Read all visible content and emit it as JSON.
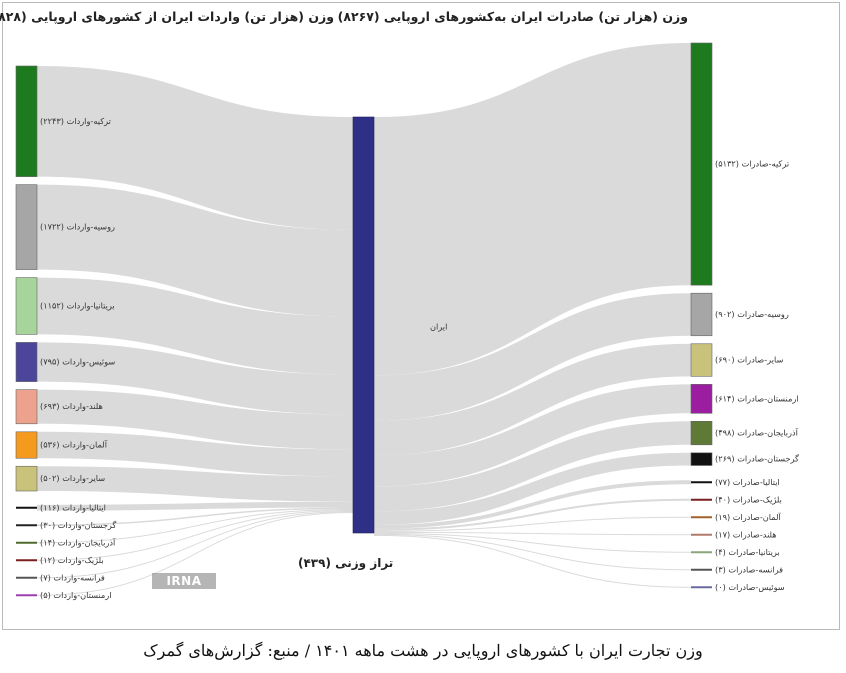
{
  "titles": {
    "left": "وزن (هزار تن) واردات ایران از کشورهای اروپایی (۷۸۲۸)",
    "right": "وزن (هزار تن) صادرات ایران به‌کشورهای اروپایی (۸۲۶۷)",
    "balance": "تراز وزنی (۴۳۹)",
    "caption": "وزن تجارت ایران با کشورهای اروپایی در هشت ماهه ۱۴۰۱ / منبع: گزارش‌های گمرک",
    "watermark": "IRNA"
  },
  "chart_data": {
    "type": "sankey",
    "unit": "هزار تن",
    "center": {
      "label": "ایران",
      "color": "#2e3087"
    },
    "imports": [
      {
        "label": "ترکیه-واردات (۲۲۴۳)",
        "value": 2243,
        "color": "#1e7a1e"
      },
      {
        "label": "روسیه-واردات (۱۷۲۲)",
        "value": 1722,
        "color": "#a6a6a6"
      },
      {
        "label": "بریتانیا-واردات (۱۱۵۲)",
        "value": 1152,
        "color": "#a6d49a"
      },
      {
        "label": "سوئیس-واردات (۷۹۵)",
        "value": 795,
        "color": "#4b469a"
      },
      {
        "label": "هلند-واردات (۶۹۳)",
        "value": 693,
        "color": "#eca28c"
      },
      {
        "label": "آلمان-واردات (۵۳۶)",
        "value": 536,
        "color": "#f39a1f"
      },
      {
        "label": "سایر-واردات (۵۰۲)",
        "value": 502,
        "color": "#c9c27b"
      },
      {
        "label": "ایتالیا-واردات (۱۱۶)",
        "value": 116,
        "color": "#111111"
      },
      {
        "label": "گرجستان-واردات (۳۰)",
        "value": 30,
        "color": "#222222"
      },
      {
        "label": "آذربایجان-واردات (۱۴)",
        "value": 14,
        "color": "#4e6b2e"
      },
      {
        "label": "بلژیک-واردات (۱۲)",
        "value": 12,
        "color": "#7a1f1f"
      },
      {
        "label": "فرانسه-واردات (۷)",
        "value": 7,
        "color": "#555555"
      },
      {
        "label": "ارمنستان-واردات (۵)",
        "value": 5,
        "color": "#9c3fb0"
      }
    ],
    "exports": [
      {
        "label": "ترکیه-صادرات (۵۱۳۲)",
        "value": 5132,
        "color": "#1e7a1e"
      },
      {
        "label": "روسیه-صادرات (۹۰۲)",
        "value": 902,
        "color": "#a6a6a6"
      },
      {
        "label": "سایر-صادرات (۶۹۰)",
        "value": 690,
        "color": "#c9c27b"
      },
      {
        "label": "ارمنستان-صادرات (۶۱۴)",
        "value": 614,
        "color": "#9b1ea0"
      },
      {
        "label": "آذربایجان-صادرات (۴۹۸)",
        "value": 498,
        "color": "#5e7a36"
      },
      {
        "label": "گرجستان-صادرات (۲۶۹)",
        "value": 269,
        "color": "#111111"
      },
      {
        "label": "ایتالیا-صادرات (۷۷)",
        "value": 77,
        "color": "#111111"
      },
      {
        "label": "بلژیک-صادرات (۴۰)",
        "value": 40,
        "color": "#7a1f1f"
      },
      {
        "label": "آلمان-صادرات (۱۹)",
        "value": 19,
        "color": "#a0622a"
      },
      {
        "label": "هلند-صادرات (۱۷)",
        "value": 17,
        "color": "#b07a6a"
      },
      {
        "label": "بریتانیا-صادرات (۴)",
        "value": 4,
        "color": "#8aa67a"
      },
      {
        "label": "فرانسه-صادرات (۳)",
        "value": 3,
        "color": "#555555"
      },
      {
        "label": "سوئیس-صادرات (۰)",
        "value": 0,
        "color": "#6a6aa0"
      }
    ]
  }
}
